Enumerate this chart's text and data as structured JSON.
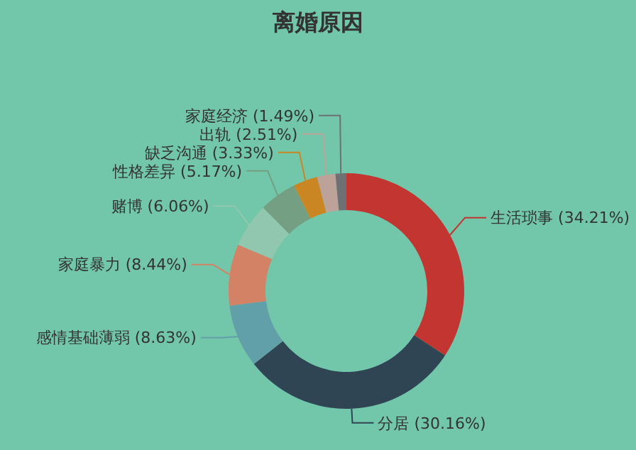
{
  "chart_data": {
    "type": "donut",
    "title": "离婚原因",
    "categories": [
      "生活琐事",
      "分居",
      "感情基础薄弱",
      "家庭暴力",
      "赌博",
      "性格差异",
      "缺乏沟通",
      "出轨",
      "家庭经济"
    ],
    "values": [
      34.21,
      30.16,
      8.63,
      8.44,
      6.06,
      5.17,
      3.33,
      2.51,
      1.49
    ],
    "value_labels": [
      "(34.21%)",
      "(30.16%)",
      "(8.63%)",
      "(8.44%)",
      "(6.06%)",
      "(5.17%)",
      "(3.33%)",
      "(2.51%)",
      "(1.49%)"
    ],
    "colors": [
      "#c23531",
      "#2f4554",
      "#61a0a8",
      "#d48265",
      "#91c7ae",
      "#749f83",
      "#ca8622",
      "#bda29a",
      "#6e7074"
    ],
    "legend": false
  }
}
